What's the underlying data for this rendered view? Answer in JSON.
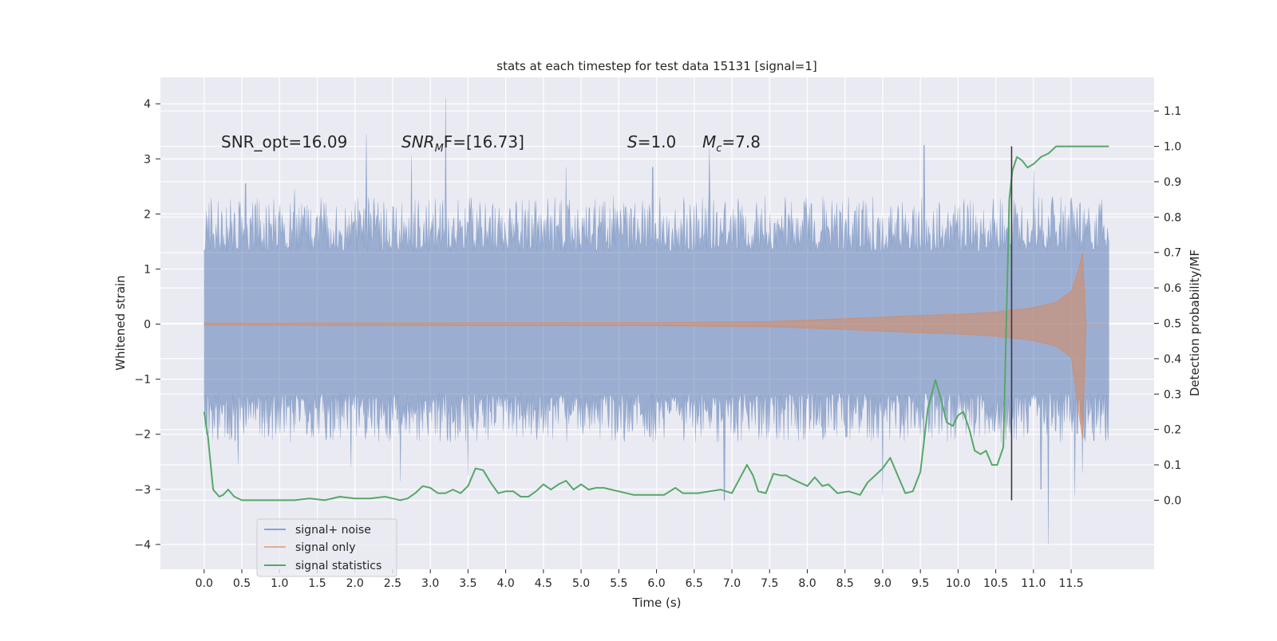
{
  "chart_data": {
    "type": "line",
    "title": "stats at each timestep for test data 15131 [signal=1]",
    "xlabel": "Time (s)",
    "ylabel": "Whitened strain",
    "ylabel_right": "Detection probability/MF",
    "xlim": [
      -0.58,
      12.6
    ],
    "ylim": [
      -4.45,
      4.48
    ],
    "ylim_right": [
      -0.195,
      1.195
    ],
    "x_ticks": [
      0.0,
      0.5,
      1.0,
      1.5,
      2.0,
      2.5,
      3.0,
      3.5,
      4.0,
      4.5,
      5.0,
      5.5,
      6.0,
      6.5,
      7.0,
      7.5,
      8.0,
      8.5,
      9.0,
      9.5,
      10.0,
      10.5,
      11.0,
      11.5
    ],
    "x_tick_labels": [
      "0.0",
      "0.5",
      "1.0",
      "1.5",
      "2.0",
      "2.5",
      "3.0",
      "3.5",
      "4.0",
      "4.5",
      "5.0",
      "5.5",
      "6.0",
      "6.5",
      "7.0",
      "7.5",
      "8.0",
      "8.5",
      "9.0",
      "9.5",
      "10.0",
      "10.5",
      "11.0",
      "11.5"
    ],
    "y_ticks": [
      -4,
      -3,
      -2,
      -1,
      0,
      1,
      2,
      3,
      4
    ],
    "y_tick_labels": [
      "−4",
      "−3",
      "−2",
      "−1",
      "0",
      "1",
      "2",
      "3",
      "4"
    ],
    "y_ticks_right": [
      0.0,
      0.1,
      0.2,
      0.3,
      0.4,
      0.5,
      0.6,
      0.7,
      0.8,
      0.9,
      1.0,
      1.1
    ],
    "y_tick_labels_right": [
      "0.0",
      "0.1",
      "0.2",
      "0.3",
      "0.4",
      "0.5",
      "0.6",
      "0.7",
      "0.8",
      "0.9",
      "1.0",
      "1.1"
    ],
    "grid": true,
    "legend_position": "lower-left",
    "series": [
      {
        "name": "signal+ noise",
        "color": "#4c72b0",
        "alpha": 0.5,
        "axis": "left",
        "kind": "noise-band",
        "x_range": [
          0.0,
          12.0
        ],
        "band": [
          -1.25,
          1.32
        ],
        "peaks": [
          [
            0.55,
            2.55
          ],
          [
            1.2,
            2.45
          ],
          [
            2.15,
            3.45
          ],
          [
            2.75,
            3.05
          ],
          [
            3.2,
            4.1
          ],
          [
            4.8,
            2.85
          ],
          [
            5.95,
            2.85
          ],
          [
            6.7,
            3.2
          ],
          [
            9.55,
            3.25
          ],
          [
            11.0,
            2.8
          ],
          [
            0.45,
            -2.55
          ],
          [
            1.95,
            -2.6
          ],
          [
            2.6,
            -2.85
          ],
          [
            3.5,
            -2.75
          ],
          [
            6.9,
            -3.2
          ],
          [
            9.0,
            -3.1
          ],
          [
            11.1,
            -3.0
          ],
          [
            11.2,
            -4.0
          ],
          [
            11.55,
            -3.1
          ],
          [
            11.65,
            -2.7
          ]
        ]
      },
      {
        "name": "signal only",
        "color": "#dd8452",
        "alpha": 0.5,
        "axis": "left",
        "kind": "chirp",
        "x": [
          0.0,
          6.0,
          7.5,
          8.5,
          9.5,
          10.0,
          10.5,
          11.0,
          11.3,
          11.5,
          11.6,
          11.65,
          11.7,
          12.0
        ],
        "envelope": [
          0.02,
          0.03,
          0.05,
          0.1,
          0.16,
          0.18,
          0.22,
          0.3,
          0.4,
          0.6,
          1.0,
          1.3,
          0.0,
          0.0
        ]
      },
      {
        "name": "signal statistics",
        "color": "#55a868",
        "alpha": 1.0,
        "axis": "right",
        "x": [
          0.0,
          0.05,
          0.12,
          0.2,
          0.25,
          0.32,
          0.4,
          0.5,
          0.7,
          1.0,
          1.2,
          1.4,
          1.6,
          1.8,
          2.0,
          2.2,
          2.4,
          2.5,
          2.6,
          2.7,
          2.8,
          2.9,
          3.0,
          3.1,
          3.2,
          3.3,
          3.4,
          3.5,
          3.6,
          3.7,
          3.8,
          3.9,
          4.0,
          4.1,
          4.2,
          4.3,
          4.4,
          4.5,
          4.6,
          4.7,
          4.8,
          4.9,
          5.0,
          5.1,
          5.2,
          5.3,
          5.5,
          5.7,
          5.9,
          6.1,
          6.25,
          6.35,
          6.45,
          6.55,
          6.7,
          6.85,
          7.0,
          7.1,
          7.2,
          7.28,
          7.35,
          7.45,
          7.55,
          7.65,
          7.72,
          7.8,
          7.9,
          8.0,
          8.1,
          8.2,
          8.28,
          8.4,
          8.55,
          8.7,
          8.8,
          8.9,
          9.0,
          9.1,
          9.2,
          9.3,
          9.4,
          9.5,
          9.6,
          9.7,
          9.78,
          9.85,
          9.93,
          10.0,
          10.07,
          10.15,
          10.22,
          10.3,
          10.37,
          10.45,
          10.52,
          10.6,
          10.68,
          10.72,
          10.78,
          10.85,
          10.92,
          11.0,
          11.1,
          11.2,
          11.3,
          11.4,
          11.5,
          11.6,
          11.7,
          11.8,
          12.0
        ],
        "y": [
          0.25,
          0.18,
          0.03,
          0.01,
          0.015,
          0.03,
          0.01,
          0.0,
          0.0,
          0.0,
          0.0,
          0.005,
          0.0,
          0.01,
          0.005,
          0.005,
          0.01,
          0.005,
          0.0,
          0.005,
          0.02,
          0.04,
          0.035,
          0.02,
          0.02,
          0.03,
          0.02,
          0.04,
          0.09,
          0.085,
          0.05,
          0.02,
          0.025,
          0.025,
          0.01,
          0.01,
          0.025,
          0.045,
          0.03,
          0.045,
          0.055,
          0.03,
          0.045,
          0.03,
          0.035,
          0.035,
          0.025,
          0.015,
          0.015,
          0.015,
          0.035,
          0.02,
          0.02,
          0.02,
          0.025,
          0.03,
          0.02,
          0.06,
          0.1,
          0.07,
          0.025,
          0.02,
          0.075,
          0.07,
          0.07,
          0.06,
          0.05,
          0.04,
          0.065,
          0.04,
          0.045,
          0.02,
          0.025,
          0.015,
          0.05,
          0.07,
          0.09,
          0.12,
          0.07,
          0.02,
          0.025,
          0.08,
          0.26,
          0.34,
          0.28,
          0.22,
          0.21,
          0.24,
          0.25,
          0.2,
          0.14,
          0.13,
          0.14,
          0.1,
          0.1,
          0.15,
          0.85,
          0.93,
          0.97,
          0.96,
          0.94,
          0.95,
          0.97,
          0.98,
          1.0,
          1.0,
          1.0,
          1.0,
          1.0,
          1.0,
          1.0
        ]
      }
    ],
    "vertical_lines": [
      {
        "x": 10.71,
        "y_from": 0.0,
        "y_to": 1.0,
        "axis": "right",
        "color": "#3a3a3a"
      }
    ],
    "annotations": {
      "snr_opt": "SNR_opt=16.09",
      "snr_mf_var": "SNR",
      "snr_mf_sub": "M",
      "snr_mf_rest": "F=[16.73]",
      "s_var": "S",
      "s_value": "=1.0",
      "mc_var": "M",
      "mc_sub": "c",
      "mc_value": "=7.8"
    }
  }
}
